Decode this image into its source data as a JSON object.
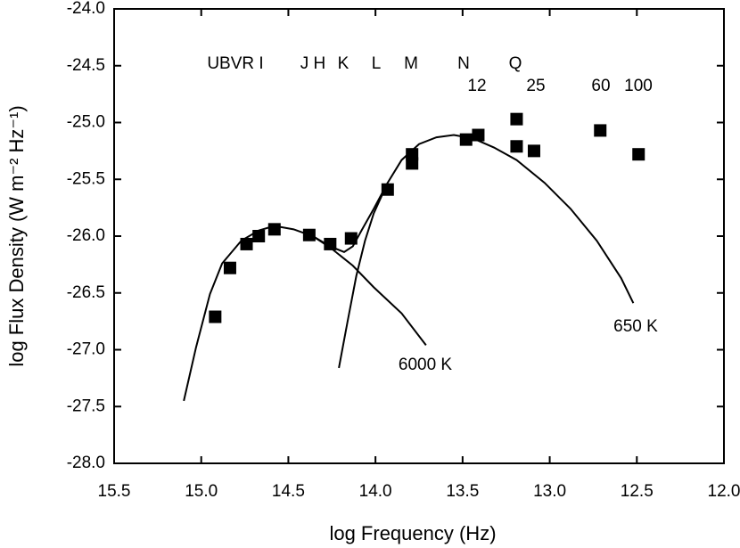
{
  "chart_data": {
    "type": "scatter",
    "xlabel": "log Frequency (Hz)",
    "ylabel": "log Flux Density (W m⁻² Hz⁻¹)",
    "xlim": [
      15.5,
      12.0
    ],
    "ylim": [
      -28.0,
      -24.0
    ],
    "xticks": [
      15.5,
      {
        "value": 15,
        "label": "15.0"
      },
      14.5,
      {
        "value": 14,
        "label": "14.0"
      },
      13.5,
      {
        "value": 13,
        "label": "13.0"
      },
      12.5,
      {
        "value": 12,
        "label": "12.0"
      }
    ],
    "yticks": [
      {
        "value": -28,
        "label": "-28.0"
      },
      -27.5,
      {
        "value": -27,
        "label": "-27.0"
      },
      -26.5,
      {
        "value": -26,
        "label": "-26.0"
      },
      -25.5,
      {
        "value": -25,
        "label": "-25.0"
      },
      -24.5,
      {
        "value": -24,
        "label": "-24.0"
      }
    ],
    "color": "#000000",
    "x": [
      14.92,
      14.835,
      14.74,
      14.67,
      14.58,
      14.38,
      14.26,
      14.14,
      13.93,
      13.79,
      13.79,
      13.48,
      13.41,
      13.19,
      13.19,
      13.09,
      12.71,
      12.49
    ],
    "values": [
      -26.71,
      -26.28,
      -26.07,
      -26.0,
      -25.94,
      -25.99,
      -26.07,
      -26.02,
      -25.59,
      -25.28,
      -25.36,
      -25.15,
      -25.11,
      -24.97,
      -25.21,
      -25.25,
      -25.07,
      -25.28
    ],
    "curves": [
      {
        "name": "6000 K",
        "x": [
          15.1,
          15.03,
          14.95,
          14.88,
          14.77,
          14.67,
          14.58,
          14.47,
          14.36,
          14.26,
          14.13,
          14.01,
          13.85,
          13.71
        ],
        "values": [
          -27.45,
          -26.98,
          -26.51,
          -26.24,
          -26.04,
          -25.95,
          -25.91,
          -25.94,
          -26.0,
          -26.1,
          -26.26,
          -26.45,
          -26.68,
          -26.96
        ]
      },
      {
        "name": "650 K",
        "x": [
          14.21,
          14.16,
          14.11,
          14.06,
          14.01,
          13.93,
          13.85,
          13.75,
          13.65,
          13.55,
          13.44,
          13.32,
          13.19,
          13.03,
          12.88,
          12.73,
          12.59,
          12.52
        ],
        "values": [
          -27.16,
          -26.75,
          -26.35,
          -26.04,
          -25.8,
          -25.53,
          -25.33,
          -25.19,
          -25.13,
          -25.11,
          -25.14,
          -25.22,
          -25.33,
          -25.53,
          -25.76,
          -26.04,
          -26.37,
          -26.59
        ]
      },
      {
        "x": [
          14.36,
          14.26,
          14.18,
          14.13,
          14.08,
          14.01,
          13.93
        ],
        "values": [
          -26.0,
          -26.09,
          -26.14,
          -26.09,
          -25.95,
          -25.76,
          -25.53
        ]
      }
    ],
    "annotations": [
      "UBVR I",
      "J H",
      "K",
      "L",
      "M",
      "N",
      "Q",
      "12",
      "25",
      "60",
      "100"
    ]
  }
}
